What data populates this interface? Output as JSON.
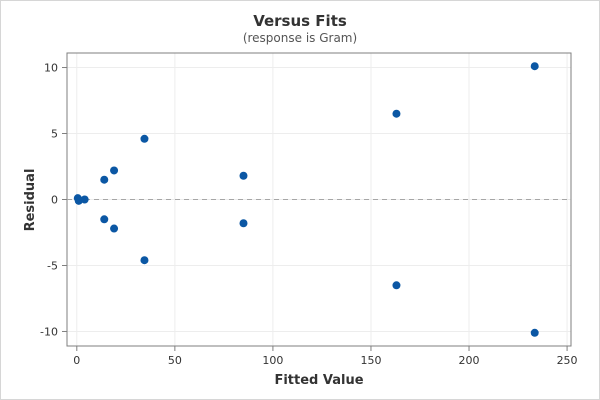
{
  "chart_data": {
    "type": "scatter",
    "title": "Versus Fits",
    "subtitle": "(response is Gram)",
    "xlabel": "Fitted Value",
    "ylabel": "Residual",
    "xlim": [
      -5,
      252
    ],
    "ylim": [
      -11.1,
      11.1
    ],
    "xticks": [
      0,
      50,
      100,
      150,
      200,
      250
    ],
    "yticks": [
      -10,
      -5,
      0,
      5,
      10
    ],
    "xtick_labels": [
      "0",
      "50",
      "100",
      "150",
      "200",
      "250"
    ],
    "ytick_labels": [
      "-10",
      "-5",
      "0",
      "5",
      "10"
    ],
    "grid": true,
    "reference_line_y": 0,
    "marker_color": "#0b57a4",
    "series": [
      {
        "points": [
          {
            "x": 0.5,
            "y": 0.1
          },
          {
            "x": 1.0,
            "y": -0.1
          },
          {
            "x": 4.0,
            "y": 0.0
          },
          {
            "x": 14.0,
            "y": 1.5
          },
          {
            "x": 14.0,
            "y": -1.5
          },
          {
            "x": 19.0,
            "y": 2.2
          },
          {
            "x": 19.0,
            "y": -2.2
          },
          {
            "x": 34.5,
            "y": 4.6
          },
          {
            "x": 34.5,
            "y": -4.6
          },
          {
            "x": 85.0,
            "y": 1.8
          },
          {
            "x": 85.0,
            "y": -1.8
          },
          {
            "x": 163.0,
            "y": 6.5
          },
          {
            "x": 163.0,
            "y": -6.5
          },
          {
            "x": 233.5,
            "y": 10.1
          },
          {
            "x": 233.5,
            "y": -10.1
          }
        ]
      }
    ]
  }
}
